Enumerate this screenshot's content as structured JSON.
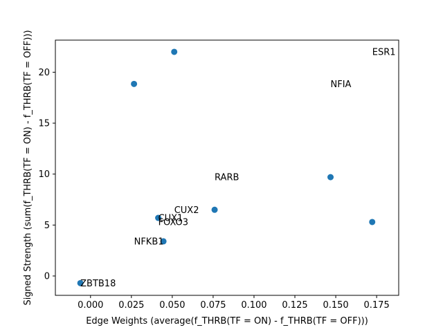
{
  "chart_data": {
    "type": "scatter",
    "title": "",
    "xlabel": "Edge Weights (average(f_THRB(TF = ON) - f_THRB(TF = OFF)))",
    "ylabel": "Signed Strength (sum(f_THRB(TF = ON) - f_THRB(TF = OFF)))",
    "xlim": [
      -0.0215,
      0.1885
    ],
    "ylim": [
      -1.9,
      23.15
    ],
    "xticks": [
      0.0,
      0.025,
      0.05,
      0.075,
      0.1,
      0.125,
      0.15,
      0.175
    ],
    "xtick_labels": [
      "0.000",
      "0.025",
      "0.050",
      "0.075",
      "0.100",
      "0.125",
      "0.150",
      "0.175"
    ],
    "yticks": [
      0,
      5,
      10,
      15,
      20
    ],
    "ytick_labels": [
      "0",
      "5",
      "10",
      "15",
      "20"
    ],
    "grid": false,
    "marker_color": "#1f77b4",
    "points": [
      {
        "x": 0.0512,
        "y": 22.0
      },
      {
        "x": 0.0266,
        "y": 18.85
      },
      {
        "x": 0.1468,
        "y": 9.7
      },
      {
        "x": 0.0759,
        "y": 6.5
      },
      {
        "x": 0.1723,
        "y": 5.3
      },
      {
        "x": 0.0414,
        "y": 5.7
      },
      {
        "x": 0.0446,
        "y": 3.4
      },
      {
        "x": -0.0062,
        "y": -0.7
      }
    ],
    "annotations": [
      {
        "text": "ESR1",
        "x": 0.1723,
        "y": 22.0
      },
      {
        "text": "NFIA",
        "x": 0.1468,
        "y": 18.85
      },
      {
        "text": "RARB",
        "x": 0.0759,
        "y": 9.7
      },
      {
        "text": "CUX2",
        "x": 0.0512,
        "y": 6.5
      },
      {
        "text": "CUX1",
        "x": 0.0414,
        "y": 5.7
      },
      {
        "text": "FOXO3",
        "x": 0.0414,
        "y": 5.3
      },
      {
        "text": "NFKB1",
        "x": 0.0266,
        "y": 3.4
      },
      {
        "text": "ZBTB18",
        "x": -0.0062,
        "y": -0.7
      }
    ]
  }
}
